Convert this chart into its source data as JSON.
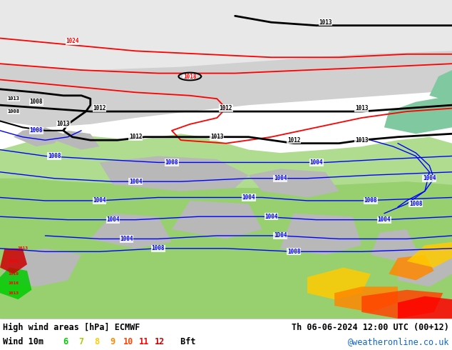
{
  "title_left": "High wind areas [hPa] ECMWF",
  "title_right": "Th 06-06-2024 12:00 UTC (00+12)",
  "subtitle_left": "Wind 10m",
  "subtitle_right": "@weatheronline.co.uk",
  "wind_legend_values": [
    "6",
    "7",
    "8",
    "9",
    "10",
    "11",
    "12"
  ],
  "wind_legend_colors": [
    "#00cc00",
    "#aacc00",
    "#ffcc00",
    "#ff8800",
    "#ff4400",
    "#ff0000",
    "#cc0000"
  ],
  "wind_bft": " Bft",
  "bg_color": "#ffffff",
  "figsize": [
    6.34,
    4.9
  ],
  "dpi": 100
}
